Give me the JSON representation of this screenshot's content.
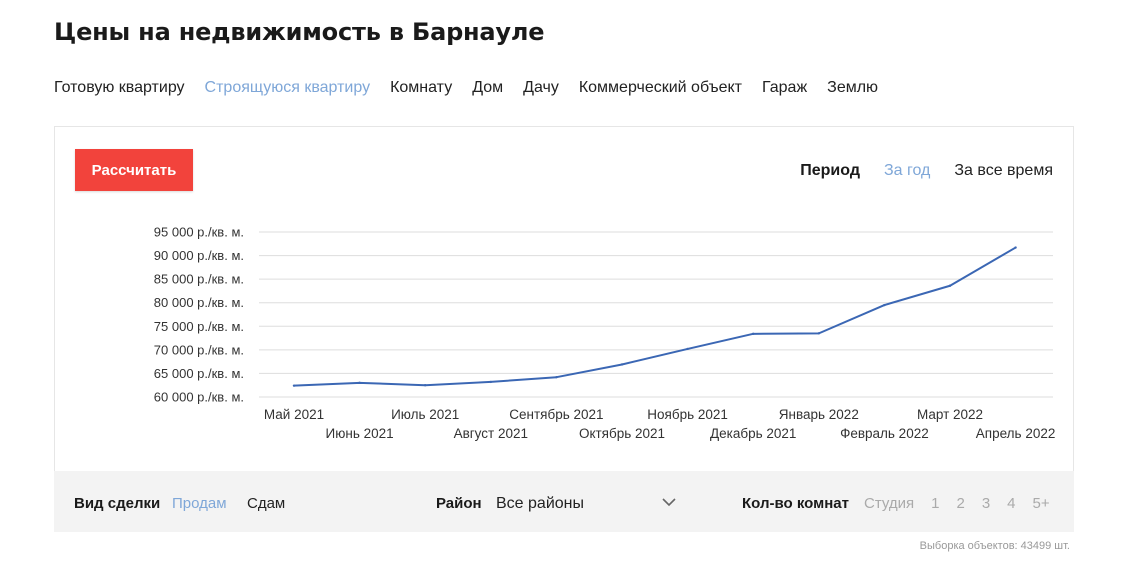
{
  "page_title": "Цены на недвижимость в Барнауле",
  "property_types": [
    {
      "label": "Готовую квартиру",
      "active": false
    },
    {
      "label": "Строящуюся квартиру",
      "active": true
    },
    {
      "label": "Комнату",
      "active": false
    },
    {
      "label": "Дом",
      "active": false
    },
    {
      "label": "Дачу",
      "active": false
    },
    {
      "label": "Коммерческий объект",
      "active": false
    },
    {
      "label": "Гараж",
      "active": false
    },
    {
      "label": "Землю",
      "active": false
    }
  ],
  "calculate_button": "Рассчитать",
  "period": {
    "label": "Период",
    "options": [
      {
        "label": "За год",
        "active": true
      },
      {
        "label": "За все время",
        "active": false
      }
    ]
  },
  "chart_data": {
    "type": "line",
    "categories": [
      "Май 2021",
      "Июнь 2021",
      "Июль 2021",
      "Август 2021",
      "Сентябрь 2021",
      "Октябрь 2021",
      "Ноябрь 2021",
      "Декабрь 2021",
      "Январь 2022",
      "Февраль 2022",
      "Март 2022",
      "Апрель 2022"
    ],
    "series": [
      {
        "values": [
          62400,
          63000,
          62500,
          63200,
          64200,
          66900,
          70200,
          73400,
          73500,
          79500,
          83600,
          91700
        ]
      }
    ],
    "y_ticks": [
      {
        "value": 60000,
        "label": "60 000 р./кв. м."
      },
      {
        "value": 65000,
        "label": "65 000 р./кв. м."
      },
      {
        "value": 70000,
        "label": "70 000 р./кв. м."
      },
      {
        "value": 75000,
        "label": "75 000 р./кв. м."
      },
      {
        "value": 80000,
        "label": "80 000 р./кв. м."
      },
      {
        "value": 85000,
        "label": "85 000 р./кв. м."
      },
      {
        "value": 90000,
        "label": "90 000 р./кв. м."
      },
      {
        "value": 95000,
        "label": "95 000 р./кв. м."
      }
    ],
    "ylim": [
      60000,
      95000
    ],
    "grid": true,
    "line_color": "#3b67b4"
  },
  "filters": {
    "deal_type_label": "Вид сделки",
    "deal_options": [
      {
        "label": "Продам",
        "active": true
      },
      {
        "label": "Сдам",
        "active": false
      }
    ],
    "district_label": "Район",
    "district_value": "Все районы",
    "rooms_label": "Кол-во комнат",
    "rooms_options": [
      "Студия",
      "1",
      "2",
      "3",
      "4",
      "5+"
    ]
  },
  "footnote": "Выборка объектов: 43499 шт.",
  "colors": {
    "accent": "#7fa7d8",
    "button": "#f2433c",
    "line": "#3b67b4"
  }
}
